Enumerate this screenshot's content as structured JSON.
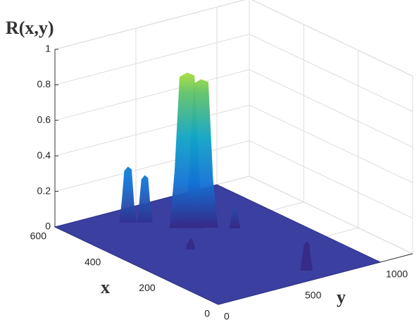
{
  "chart_data": {
    "type": "surface3d",
    "title": "R(x,y)",
    "xlabel": "x",
    "ylabel": "y",
    "xlim": [
      0,
      600
    ],
    "xticks": [
      0,
      200,
      400,
      600
    ],
    "ylim": [
      0,
      1200
    ],
    "yticks": [
      0,
      500,
      1000
    ],
    "zlim": [
      0,
      1
    ],
    "zticks": [
      0,
      0.2,
      0.4,
      0.6,
      0.8,
      1
    ],
    "grid": true,
    "floor_color": "#3b3fa0",
    "floor": {
      "x": [
        0,
        600
      ],
      "y": [
        0,
        1000
      ],
      "z": 0
    },
    "peaks": {
      "x": [
        540,
        520,
        436,
        420,
        373,
        325,
        68
      ],
      "y": [
        350,
        420,
        540,
        600,
        729,
        375,
        659
      ],
      "z": [
        0.3,
        0.25,
        0.86,
        0.82,
        0.1,
        0.05,
        0.15
      ]
    }
  }
}
